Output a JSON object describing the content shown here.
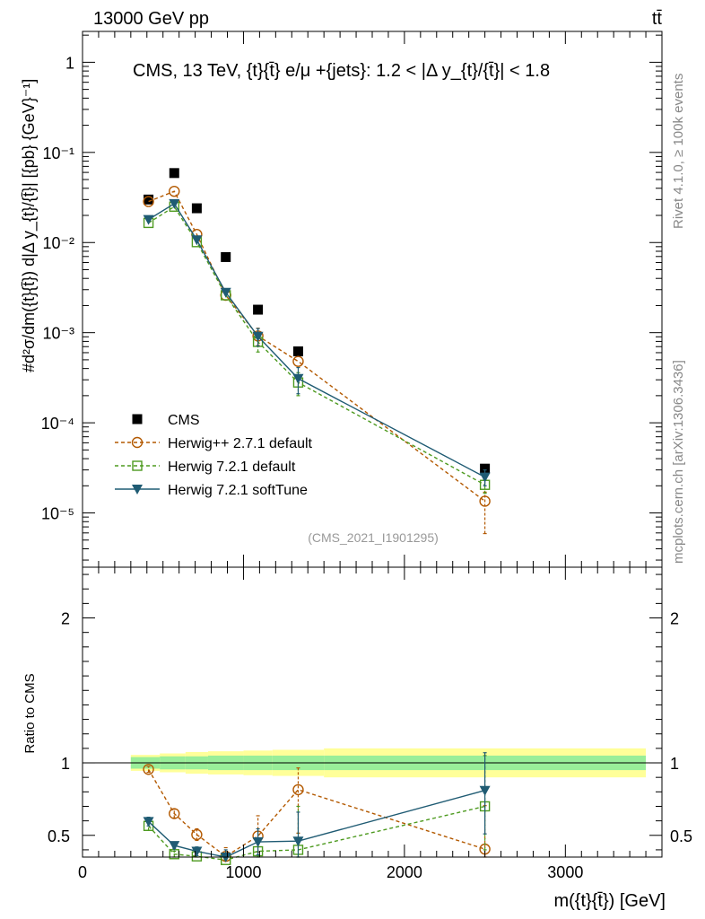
{
  "header": {
    "energy_label": "13000 GeV pp",
    "process_label": "tt̄"
  },
  "side": {
    "rivet_label": "Rivet 4.1.0, ≥ 100k events",
    "mcplots_label": "mcplots.cern.ch [arXiv:1306.3436]"
  },
  "chart_data": [
    {
      "type": "scatter",
      "panel": "main",
      "title": "CMS, 13 TeV, {t}{t̄} e/μ +{jets}: 1.2 < |Δ y_{t}/{t̄}| < 1.8",
      "analysis_tag": "(CMS_2021_I1901295)",
      "xlabel": "m({t}{t̄}) [GeV]",
      "ylabel": "#d²σ/dm({t}{t̄}) d|Δ y_{t}/{t̄}| [{pb} {GeV}⁻¹]",
      "yscale": "log",
      "xlim": [
        0,
        3600
      ],
      "ylim": [
        2.5e-06,
        2.2
      ],
      "y_ticks": [
        {
          "v": 1e-05,
          "label": "10⁻⁵"
        },
        {
          "v": 0.0001,
          "label": "10⁻⁴"
        },
        {
          "v": 0.001,
          "label": "10⁻³"
        },
        {
          "v": 0.01,
          "label": "10⁻²"
        },
        {
          "v": 0.1,
          "label": "10⁻¹"
        },
        {
          "v": 1,
          "label": "1"
        }
      ],
      "legend_position": "lower-left",
      "series": [
        {
          "name": "CMS",
          "style": "data",
          "marker": "square-filled",
          "color": "#000000",
          "points": [
            [
              410,
              0.03
            ],
            [
              570,
              0.059
            ],
            [
              710,
              0.024
            ],
            [
              890,
              0.0069
            ],
            [
              1090,
              0.0018
            ],
            [
              1340,
              0.00062
            ],
            [
              2500,
              3.1e-05
            ]
          ]
        },
        {
          "name": "Herwig++ 2.7.1 default",
          "style": "dashed",
          "marker": "circle-open",
          "color": "#b35900",
          "points": [
            [
              410,
              0.0285
            ],
            [
              570,
              0.037
            ],
            [
              710,
              0.0123
            ],
            [
              890,
              0.0026
            ],
            [
              1090,
              0.00092
            ],
            [
              1340,
              0.00048
            ],
            [
              2500,
              1.35e-05
            ]
          ],
          "err_low": [
            0,
            0,
            0,
            0,
            0.0002,
            0,
            7.6e-06
          ],
          "err_high": [
            0,
            0,
            0,
            0,
            0.0002,
            0,
            3.5e-06
          ]
        },
        {
          "name": "Herwig 7.2.1 default",
          "style": "dashed",
          "marker": "square-open",
          "color": "#4d9a1f",
          "points": [
            [
              410,
              0.0165
            ],
            [
              570,
              0.025
            ],
            [
              710,
              0.0101
            ],
            [
              890,
              0.0026
            ],
            [
              1090,
              0.00079
            ],
            [
              1340,
              0.00028
            ],
            [
              2500,
              2.05e-05
            ]
          ],
          "err_low": [
            0,
            0,
            0,
            0,
            0.00018,
            8e-05,
            4e-06
          ],
          "err_high": [
            0,
            0,
            0,
            0,
            0.00018,
            8e-05,
            4e-06
          ]
        },
        {
          "name": "Herwig 7.2.1 softTune",
          "style": "solid",
          "marker": "triangle-down-filled",
          "color": "#1f5b73",
          "points": [
            [
              410,
              0.018
            ],
            [
              570,
              0.027
            ],
            [
              710,
              0.0107
            ],
            [
              890,
              0.0028
            ],
            [
              1090,
              0.00091
            ],
            [
              1340,
              0.00031
            ],
            [
              2500,
              2.5e-05
            ]
          ],
          "err_low": [
            0,
            0,
            0,
            0,
            0.0002,
            0.0001,
            5e-06
          ],
          "err_high": [
            0,
            0,
            0,
            0,
            0.0002,
            0.0001,
            5e-06
          ]
        }
      ]
    },
    {
      "type": "scatter",
      "panel": "ratio",
      "ylabel": "Ratio to CMS",
      "xlabel": "m({t}{t̄}) [GeV]",
      "xlim": [
        0,
        3600
      ],
      "ylim": [
        0.35,
        2.35
      ],
      "x_ticks": [
        0,
        1000,
        2000,
        3000
      ],
      "y_ticks": [
        0.5,
        1,
        2
      ],
      "reference_line": 1,
      "bands": {
        "edges": [
          300,
          480,
          640,
          780,
          1000,
          1180,
          1500,
          3500
        ],
        "inner_low": [
          0.96,
          0.955,
          0.955,
          0.95,
          0.95,
          0.95,
          0.95
        ],
        "inner_high": [
          1.04,
          1.045,
          1.045,
          1.05,
          1.05,
          1.05,
          1.05
        ],
        "outer_low": [
          0.945,
          0.935,
          0.925,
          0.92,
          0.915,
          0.91,
          0.9
        ],
        "outer_high": [
          1.055,
          1.065,
          1.075,
          1.08,
          1.085,
          1.09,
          1.1
        ],
        "inner_color": "#99ee99",
        "outer_color": "#ffff99"
      },
      "series": [
        {
          "name": "Herwig++ 2.7.1 default",
          "style": "dashed",
          "marker": "circle-open",
          "color": "#b35900",
          "points": [
            [
              410,
              0.955
            ],
            [
              570,
              0.65
            ],
            [
              710,
              0.505
            ],
            [
              890,
              0.355
            ],
            [
              1090,
              0.495
            ],
            [
              1340,
              0.815
            ],
            [
              2500,
              0.405
            ]
          ],
          "err_low": [
            0.02,
            0.03,
            0.04,
            0.06,
            0.11,
            0.3,
            0.3
          ],
          "err_high": [
            0.02,
            0.03,
            0.04,
            0.06,
            0.14,
            0.15,
            0.3
          ]
        },
        {
          "name": "Herwig 7.2.1 default",
          "style": "dashed",
          "marker": "square-open",
          "color": "#4d9a1f",
          "points": [
            [
              410,
              0.565
            ],
            [
              570,
              0.37
            ],
            [
              710,
              0.355
            ],
            [
              890,
              0.33
            ],
            [
              1090,
              0.39
            ],
            [
              1340,
              0.4
            ],
            [
              2500,
              0.7
            ]
          ],
          "err_low": [
            0.03,
            0.02,
            0.03,
            0.04,
            0.09,
            0.11,
            0.3
          ],
          "err_high": [
            0.03,
            0.02,
            0.03,
            0.04,
            0.09,
            0.3,
            0.35
          ]
        },
        {
          "name": "Herwig 7.2.1 softTune",
          "style": "solid",
          "marker": "triangle-down-filled",
          "color": "#1f5b73",
          "points": [
            [
              410,
              0.595
            ],
            [
              570,
              0.43
            ],
            [
              710,
              0.39
            ],
            [
              890,
              0.35
            ],
            [
              1090,
              0.455
            ],
            [
              1340,
              0.46
            ],
            [
              2500,
              0.81
            ]
          ],
          "err_low": [
            0.03,
            0.02,
            0.03,
            0.05,
            0.09,
            0.13,
            0.3
          ],
          "err_high": [
            0.03,
            0.02,
            0.03,
            0.05,
            0.09,
            0.2,
            0.26
          ]
        }
      ]
    }
  ]
}
